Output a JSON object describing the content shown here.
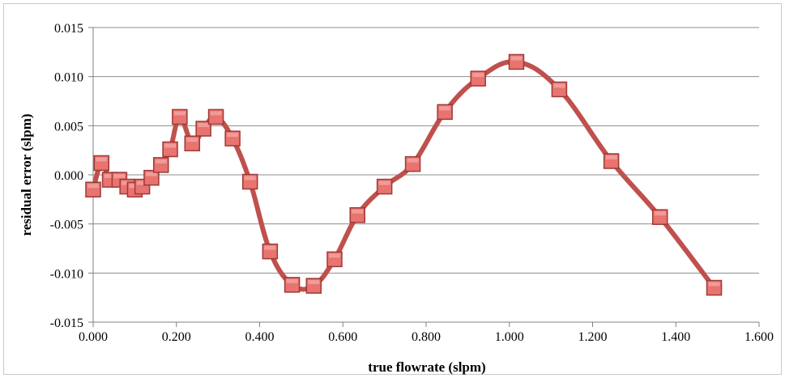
{
  "chart_data": {
    "type": "line",
    "xlabel": "true flowrate (slpm)",
    "ylabel": "residual error (slpm)",
    "xlim": [
      0.0,
      1.6
    ],
    "ylim": [
      -0.015,
      0.015
    ],
    "x_ticks": [
      "0.000",
      "0.200",
      "0.400",
      "0.600",
      "0.800",
      "1.000",
      "1.200",
      "1.400",
      "1.600"
    ],
    "y_ticks": [
      "0.015",
      "0.010",
      "0.005",
      "0.000",
      "-0.005",
      "-0.010",
      "-0.015"
    ],
    "grid": "horizontal",
    "legend": "none",
    "series": [
      {
        "color": "#c0504d",
        "marker": "square",
        "marker_fill": "#e8736f",
        "points": [
          {
            "x": 0.0,
            "y": -0.0015
          },
          {
            "x": 0.02,
            "y": 0.0012
          },
          {
            "x": 0.04,
            "y": -0.0005
          },
          {
            "x": 0.063,
            "y": -0.0005
          },
          {
            "x": 0.082,
            "y": -0.0012
          },
          {
            "x": 0.1,
            "y": -0.0015
          },
          {
            "x": 0.118,
            "y": -0.0012
          },
          {
            "x": 0.14,
            "y": -0.0003
          },
          {
            "x": 0.163,
            "y": 0.001
          },
          {
            "x": 0.185,
            "y": 0.0026
          },
          {
            "x": 0.208,
            "y": 0.0059
          },
          {
            "x": 0.238,
            "y": 0.0032
          },
          {
            "x": 0.265,
            "y": 0.0047
          },
          {
            "x": 0.295,
            "y": 0.0059
          },
          {
            "x": 0.335,
            "y": 0.0037
          },
          {
            "x": 0.377,
            "y": -0.0007
          },
          {
            "x": 0.425,
            "y": -0.0078
          },
          {
            "x": 0.478,
            "y": -0.0112
          },
          {
            "x": 0.53,
            "y": -0.0113
          },
          {
            "x": 0.58,
            "y": -0.0086
          },
          {
            "x": 0.635,
            "y": -0.0041
          },
          {
            "x": 0.7,
            "y": -0.0012
          },
          {
            "x": 0.768,
            "y": 0.0011
          },
          {
            "x": 0.845,
            "y": 0.0064
          },
          {
            "x": 0.925,
            "y": 0.0098
          },
          {
            "x": 1.017,
            "y": 0.0115
          },
          {
            "x": 1.12,
            "y": 0.0087
          },
          {
            "x": 1.245,
            "y": 0.0014
          },
          {
            "x": 1.362,
            "y": -0.0043
          },
          {
            "x": 1.492,
            "y": -0.0115
          }
        ]
      }
    ]
  }
}
